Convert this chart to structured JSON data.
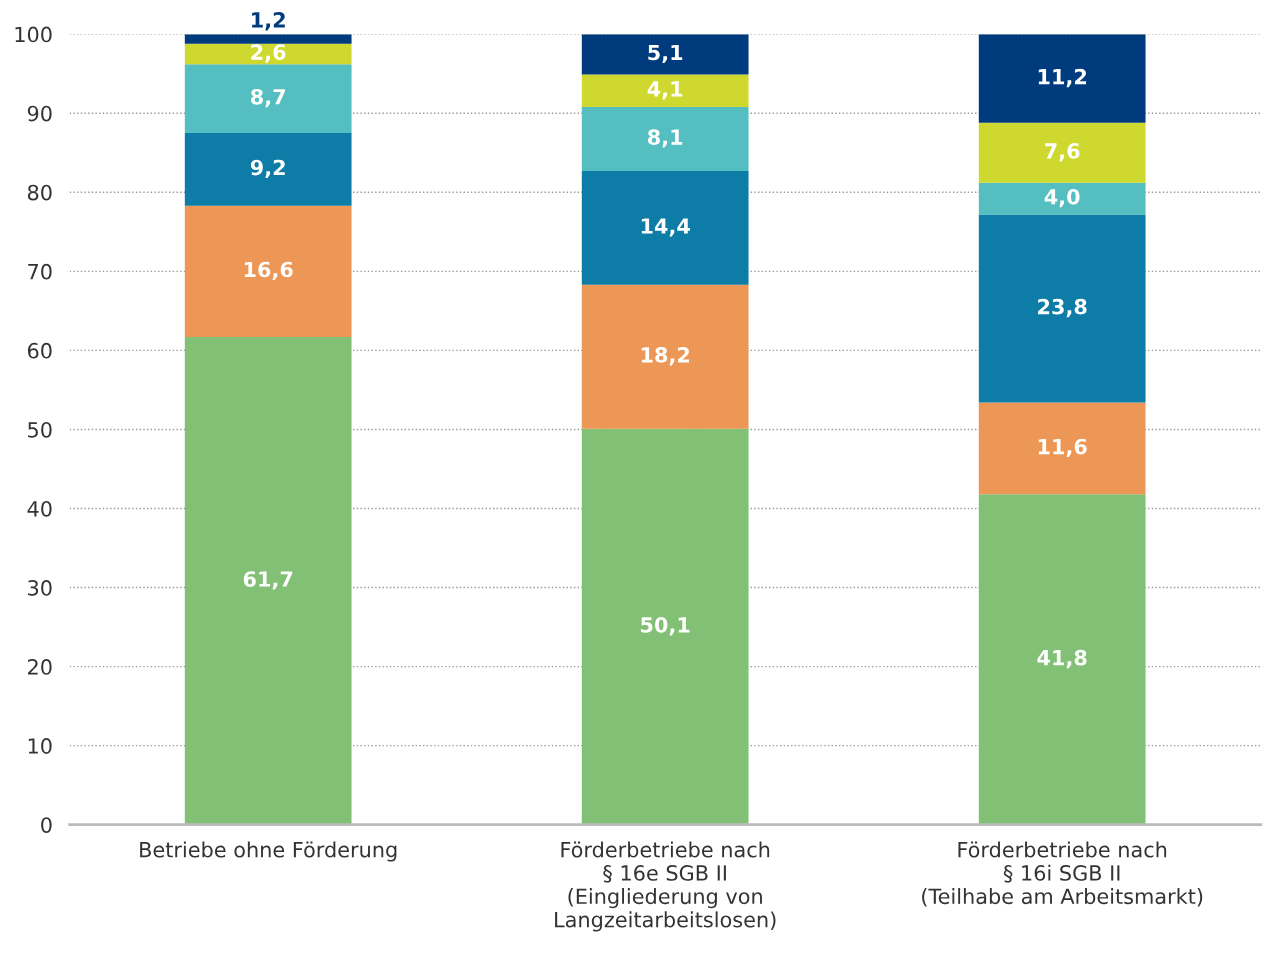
{
  "chart_data": {
    "type": "bar",
    "stacked": true,
    "categories": [
      "Betriebe ohne Förderung",
      "Förderbetriebe nach\n§ 16e SGB II\n(Eingliederung von\nLangzeitarbeitslosen)",
      "Förderbetriebe nach\n§ 16i SGB II\n(Teilhabe am Arbeitsmarkt)"
    ],
    "series": [
      {
        "color": "#82c175",
        "values": [
          61.7,
          50.1,
          41.8
        ],
        "value_labels": [
          "61,7",
          "50,1",
          "41,8"
        ]
      },
      {
        "color": "#ec9755",
        "values": [
          16.6,
          18.2,
          11.6
        ],
        "value_labels": [
          "16,6",
          "18,2",
          "11,6"
        ]
      },
      {
        "color": "#0d7ca6",
        "values": [
          9.2,
          14.4,
          23.8
        ],
        "value_labels": [
          "9,2",
          "14,4",
          "23,8"
        ]
      },
      {
        "color": "#55bec0",
        "values": [
          8.7,
          8.1,
          4.0
        ],
        "value_labels": [
          "8,7",
          "8,1",
          "4,0"
        ]
      },
      {
        "color": "#cfd82e",
        "values": [
          2.6,
          4.1,
          7.6
        ],
        "value_labels": [
          "2,6",
          "4,1",
          "7,6"
        ]
      },
      {
        "color": "#003c7d",
        "values": [
          1.2,
          5.1,
          11.2
        ],
        "value_labels": [
          "1,2",
          "5,1",
          "11,2"
        ]
      }
    ],
    "ylim": [
      0,
      100
    ],
    "yticks": [
      0,
      10,
      20,
      30,
      40,
      50,
      60,
      70,
      80,
      90,
      100
    ],
    "grid": "y",
    "legend": false
  }
}
